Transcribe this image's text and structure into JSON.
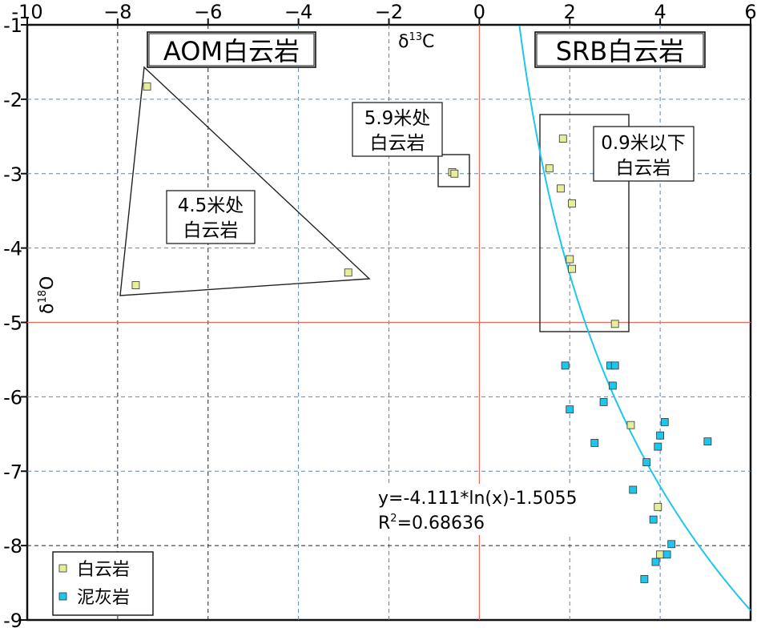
{
  "chart_data": {
    "type": "scatter",
    "xlabel": "δ13C",
    "xlabel_main": "δ",
    "xlabel_sup": "13",
    "xlabel_tail": "C",
    "ylabel": "δ18O",
    "ylabel_main": "δ",
    "ylabel_sup": "18",
    "ylabel_tail": "O",
    "xlim": [
      -10,
      6
    ],
    "ylim": [
      -9,
      -1
    ],
    "x_ticks": [
      -10,
      -8,
      -6,
      -4,
      -2,
      0,
      2,
      4,
      6
    ],
    "x_tick_labels": [
      "-10",
      "−8",
      "−6",
      "−4",
      "−2",
      "0",
      "2",
      "4",
      "6"
    ],
    "y_ticks": [
      -1,
      -2,
      -3,
      -4,
      -5,
      -6,
      -7,
      -8,
      -9
    ],
    "y_tick_labels": [
      "-1",
      "-2",
      "-3",
      "-4",
      "-5",
      "-6",
      "-7",
      "-8",
      "-9"
    ],
    "grid": true,
    "series": [
      {
        "name": "白云岩",
        "color": "#e6ee9a",
        "x": [
          -7.35,
          -7.6,
          -2.9,
          -0.6,
          -0.55,
          1.85,
          1.55,
          1.8,
          2.05,
          2.0,
          2.05,
          3.0,
          3.35,
          3.95,
          4.0
        ],
        "y": [
          -1.83,
          -4.5,
          -4.33,
          -2.98,
          -3.0,
          -2.53,
          -2.93,
          -3.2,
          -3.4,
          -4.15,
          -4.28,
          -5.02,
          -6.38,
          -7.48,
          -8.12
        ]
      },
      {
        "name": "泥灰岩",
        "color": "#1ec6ee",
        "x": [
          1.9,
          2.9,
          3.0,
          2.95,
          2.75,
          2.0,
          2.55,
          4.1,
          4.0,
          3.95,
          5.05,
          3.7,
          3.4,
          3.85,
          4.25,
          4.15,
          3.9,
          3.65
        ],
        "y": [
          -5.58,
          -5.58,
          -5.58,
          -5.85,
          -6.07,
          -6.17,
          -6.62,
          -6.34,
          -6.52,
          -6.67,
          -6.6,
          -6.88,
          -7.25,
          -7.65,
          -7.98,
          -8.12,
          -8.22,
          -8.45
        ]
      }
    ],
    "fit": {
      "type": "logarithmic",
      "color": "#1ec6ee",
      "a": -4.111,
      "b": -1.5055,
      "equation": "y=-4.111*ln(x)-1.5055",
      "r2_label": "R",
      "r2_sup": "2",
      "r2_value": "=0.68636"
    },
    "reference_lines": {
      "x": 0,
      "y": -5,
      "color": "#e8695a"
    },
    "annotations": {
      "aom_title": "AOM白云岩",
      "srb_title": "SRB白云岩",
      "group_45m_line1": "4.5米处",
      "group_45m_line2": "白云岩",
      "group_59m_line1": "5.9米处",
      "group_59m_line2": "白云岩",
      "group_09m_line1": "0.9米以下",
      "group_09m_line2": "白云岩"
    },
    "legend": {
      "position": "bottom-left",
      "items": [
        {
          "label": "白云岩",
          "color": "#e6ee9a"
        },
        {
          "label": "泥灰岩",
          "color": "#1ec6ee"
        }
      ]
    }
  }
}
